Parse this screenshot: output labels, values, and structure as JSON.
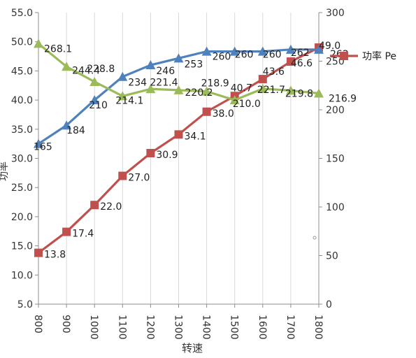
{
  "chart_data": {
    "type": "line",
    "title": "",
    "xlabel": "转速",
    "ylabel_left": "功率",
    "ylabel_right": "",
    "categories": [
      "800",
      "900",
      "1000",
      "1100",
      "1200",
      "1300",
      "1400",
      "1500",
      "1600",
      "1700",
      "1800"
    ],
    "ylim_left": [
      5.0,
      55.0
    ],
    "yticks_left": [
      "5.0",
      "10.0",
      "15.0",
      "20.0",
      "25.0",
      "30.0",
      "35.0",
      "40.0",
      "45.0",
      "50.0",
      "55.0"
    ],
    "ylim_right": [
      0,
      300
    ],
    "yticks_right": [
      "0",
      "50",
      "100",
      "150",
      "200",
      "250",
      "300"
    ],
    "grid": "vertical",
    "legend_position": "right",
    "series": [
      {
        "name": "功率 Pe",
        "axis": "left",
        "marker": "square",
        "color": "#C0504D",
        "values": [
          13.8,
          17.4,
          22.0,
          27.0,
          30.9,
          34.1,
          38.0,
          40.7,
          43.6,
          46.6,
          49.0
        ],
        "labels": [
          "13.8",
          "17.4",
          "22.0",
          "27.0",
          "30.9",
          "34.1",
          "38.0",
          "40.7",
          "43.6",
          "46.6",
          "49.0"
        ]
      },
      {
        "name": "",
        "axis": "right",
        "marker": "triangle",
        "color": "#4F81BD",
        "values": [
          165,
          184,
          210,
          234,
          246,
          253,
          260,
          260,
          260,
          262,
          262
        ],
        "labels": [
          "165",
          "184",
          "210",
          "234",
          "246",
          "253",
          "260",
          "260",
          "260",
          "262",
          "262"
        ]
      },
      {
        "name": "",
        "axis": "right",
        "marker": "triangle",
        "color": "#9BBB59",
        "values": [
          268.1,
          244.4,
          228.8,
          214.1,
          221.4,
          220.2,
          218.9,
          210.0,
          221.7,
          219.8,
          216.9
        ],
        "labels": [
          "268.1",
          "244.4",
          "228.8",
          "214.1",
          "221.4",
          "220.2",
          "218.9",
          "210.0",
          "221.7",
          "219.8",
          "216.9"
        ]
      }
    ]
  }
}
